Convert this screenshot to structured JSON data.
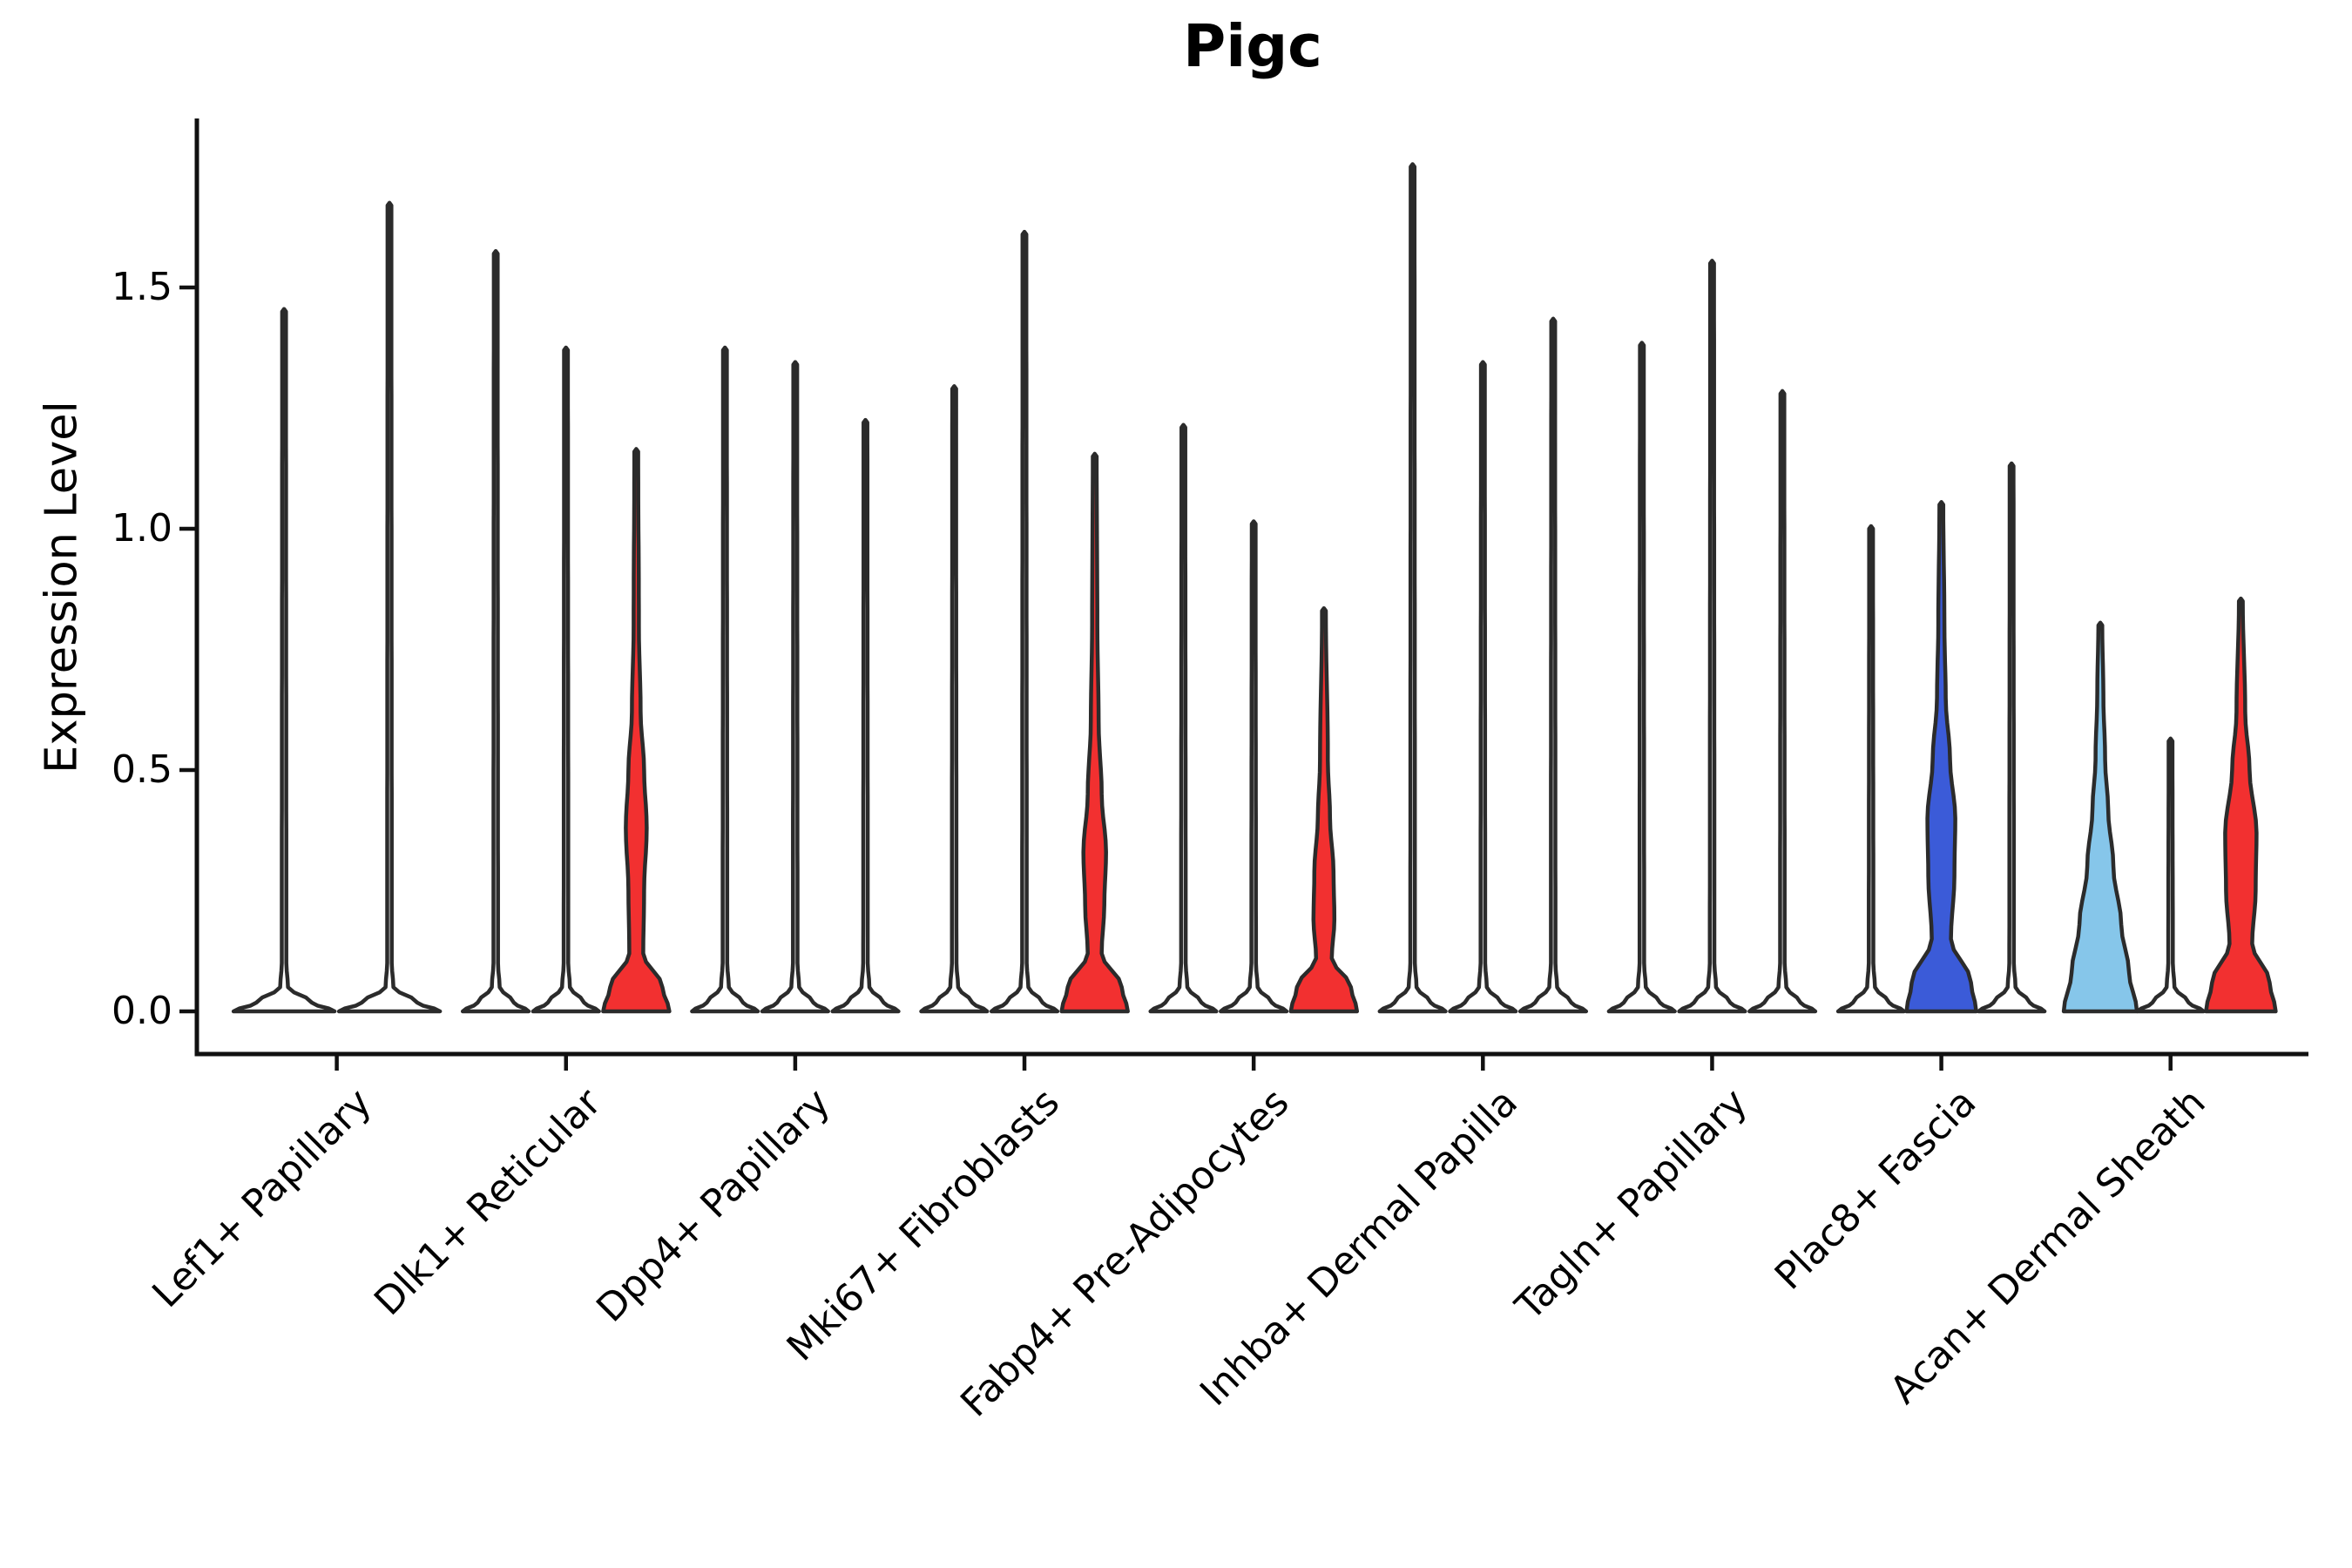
{
  "chart_data": {
    "type": "violin",
    "title": "Pigc",
    "xlabel": "",
    "ylabel": "Expression Level",
    "ylim": [
      -0.09,
      1.85
    ],
    "grid": false,
    "legend": "none",
    "yticks": {
      "labels": [
        "0.0",
        "0.5",
        "1.0",
        "1.5"
      ],
      "values": [
        0.0,
        0.5,
        1.0,
        1.5
      ]
    },
    "colors": {
      "red": "#F23030",
      "blue": "#3B5BD8",
      "lightblue": "#86C6EA",
      "white": "#FFFFFF",
      "outline": "#2B2B2B",
      "axis": "#111111"
    },
    "categories": [
      {
        "label": "Lef1+ Papillary",
        "violins": [
          {
            "max": 1.45,
            "fill": "white"
          },
          {
            "max": 1.67,
            "fill": "white"
          }
        ]
      },
      {
        "label": "Dlk1+ Reticular",
        "violins": [
          {
            "max": 1.57,
            "fill": "white"
          },
          {
            "max": 1.37,
            "fill": "white"
          },
          {
            "max": 1.16,
            "fill": "red",
            "profile": [
              [
                0,
                38
              ],
              [
                0.05,
                30
              ],
              [
                0.12,
                8
              ],
              [
                0.25,
                9
              ],
              [
                0.38,
                12
              ],
              [
                0.5,
                9
              ],
              [
                0.62,
                5
              ],
              [
                0.8,
                3
              ],
              [
                1.16,
                2.2
              ]
            ]
          }
        ]
      },
      {
        "label": "Dpp4+ Papillary",
        "violins": [
          {
            "max": 1.37,
            "fill": "white"
          },
          {
            "max": 1.34,
            "fill": "white"
          },
          {
            "max": 1.22,
            "fill": "white"
          }
        ]
      },
      {
        "label": "Mki67+ Fibroblasts",
        "violins": [
          {
            "max": 1.29,
            "fill": "white"
          },
          {
            "max": 1.61,
            "fill": "white"
          },
          {
            "max": 1.15,
            "fill": "red",
            "profile": [
              [
                0,
                38
              ],
              [
                0.05,
                31
              ],
              [
                0.12,
                8
              ],
              [
                0.22,
                11
              ],
              [
                0.33,
                13
              ],
              [
                0.45,
                8
              ],
              [
                0.6,
                4.5
              ],
              [
                0.8,
                3
              ],
              [
                1.15,
                2.2
              ]
            ]
          }
        ]
      },
      {
        "label": "Fabp4+ Pre-Adipocytes",
        "violins": [
          {
            "max": 1.21,
            "fill": "white"
          },
          {
            "max": 1.01,
            "fill": "white"
          },
          {
            "max": 0.83,
            "fill": "red",
            "profile": [
              [
                0,
                38
              ],
              [
                0.05,
                31
              ],
              [
                0.11,
                9
              ],
              [
                0.19,
                12
              ],
              [
                0.29,
                11
              ],
              [
                0.4,
                7
              ],
              [
                0.52,
                4.5
              ],
              [
                0.83,
                2.2
              ]
            ]
          }
        ]
      },
      {
        "label": "Inhba+ Dermal Papilla",
        "violins": [
          {
            "max": 1.75,
            "fill": "white"
          },
          {
            "max": 1.34,
            "fill": "white"
          },
          {
            "max": 1.43,
            "fill": "white"
          }
        ]
      },
      {
        "label": "Tagln+ Papillary",
        "violins": [
          {
            "max": 1.38,
            "fill": "white"
          },
          {
            "max": 1.55,
            "fill": "white"
          },
          {
            "max": 1.28,
            "fill": "white"
          }
        ]
      },
      {
        "label": "Plac8+ Fascia",
        "violins": [
          {
            "max": 1.0,
            "fill": "white"
          },
          {
            "max": 1.05,
            "fill": "blue",
            "profile": [
              [
                0,
                40
              ],
              [
                0.06,
                34
              ],
              [
                0.15,
                11
              ],
              [
                0.28,
                15
              ],
              [
                0.4,
                16
              ],
              [
                0.52,
                10
              ],
              [
                0.65,
                5
              ],
              [
                0.8,
                3.5
              ],
              [
                1.05,
                2.2
              ]
            ]
          },
          {
            "max": 1.13,
            "fill": "white"
          }
        ]
      },
      {
        "label": "Acan+ Dermal Sheath",
        "violins": [
          {
            "max": 0.8,
            "fill": "lightblue",
            "profile": [
              [
                0,
                42
              ],
              [
                0.08,
                33
              ],
              [
                0.18,
                24
              ],
              [
                0.3,
                15
              ],
              [
                0.42,
                9
              ],
              [
                0.52,
                5.5
              ],
              [
                0.66,
                3.5
              ],
              [
                0.8,
                2.2
              ]
            ]
          },
          {
            "max": 0.56,
            "fill": "white"
          },
          {
            "max": 0.85,
            "fill": "red",
            "profile": [
              [
                0,
                40
              ],
              [
                0.06,
                33
              ],
              [
                0.14,
                13
              ],
              [
                0.25,
                17
              ],
              [
                0.37,
                18
              ],
              [
                0.5,
                10
              ],
              [
                0.62,
                5
              ],
              [
                0.85,
                2.2
              ]
            ]
          }
        ]
      }
    ]
  }
}
